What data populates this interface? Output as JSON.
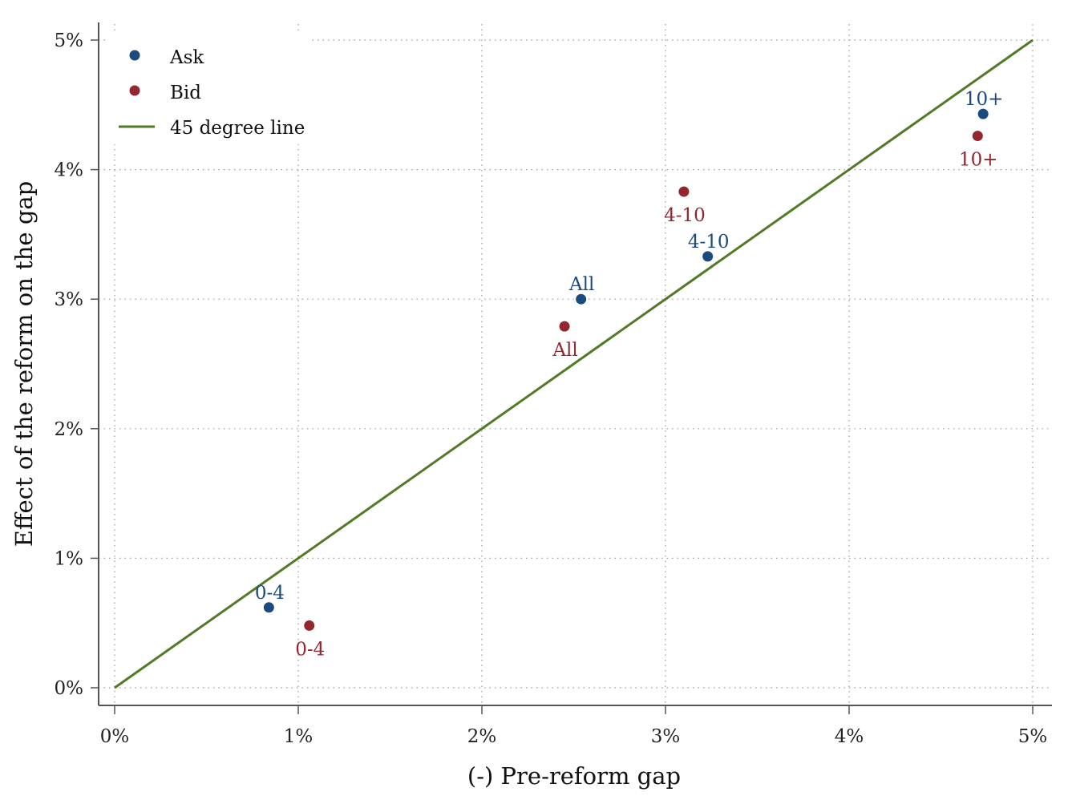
{
  "chart_data": {
    "type": "scatter",
    "xlabel": "(-) Pre-reform gap",
    "ylabel": "Effect of the reform on the gap",
    "xlim": [
      0,
      5
    ],
    "ylim": [
      0,
      5
    ],
    "x_ticks": [
      "0%",
      "1%",
      "2%",
      "3%",
      "4%",
      "5%"
    ],
    "y_ticks": [
      "0%",
      "1%",
      "2%",
      "3%",
      "4%",
      "5%"
    ],
    "grid": true,
    "legend_position": "top-left",
    "series": [
      {
        "name": "Ask",
        "color": "#1b4a7e",
        "points": [
          {
            "x": 0.84,
            "y": 0.62,
            "label": "0-4"
          },
          {
            "x": 2.54,
            "y": 3.0,
            "label": "All"
          },
          {
            "x": 3.23,
            "y": 3.33,
            "label": "4-10"
          },
          {
            "x": 4.73,
            "y": 4.43,
            "label": "10+"
          }
        ]
      },
      {
        "name": "Bid",
        "color": "#93262e",
        "points": [
          {
            "x": 1.06,
            "y": 0.48,
            "label": "0-4"
          },
          {
            "x": 2.45,
            "y": 2.79,
            "label": "All"
          },
          {
            "x": 3.1,
            "y": 3.83,
            "label": "4-10"
          },
          {
            "x": 4.7,
            "y": 4.26,
            "label": "10+"
          }
        ]
      }
    ],
    "reference_line": {
      "name": "45 degree line",
      "color": "#4f7a28",
      "from": [
        0,
        0
      ],
      "to": [
        5,
        5
      ]
    }
  }
}
